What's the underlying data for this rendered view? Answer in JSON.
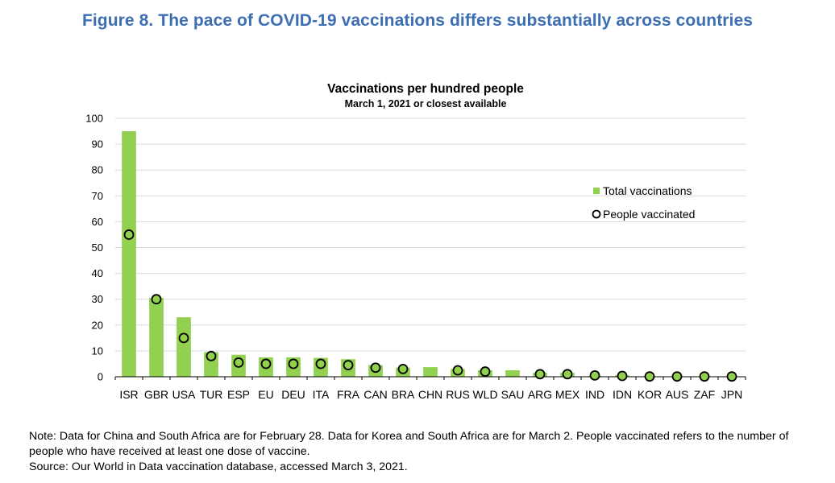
{
  "figure": {
    "title": "Figure 8. The pace of COVID-19 vaccinations differs substantially across countries"
  },
  "notes": {
    "note": "Note: Data for China and South Africa are for February 28. Data for Korea and South Africa are for March 2. People vaccinated refers to the number of people who have received at least one dose of vaccine.",
    "source": "Source: Our World in Data vaccination database, accessed March 3, 2021."
  },
  "colors": {
    "bar": "#92d050",
    "marker_fill": "#92d050",
    "marker_stroke": "#000000",
    "title": "#3c6eb4",
    "grid": "#d9d9d9"
  },
  "chart_data": {
    "type": "bar",
    "title": "Vaccinations per hundred people",
    "subtitle": "March 1, 2021 or closest available",
    "xlabel": "",
    "ylabel": "",
    "ylim": [
      0,
      100
    ],
    "yticks": [
      0,
      10,
      20,
      30,
      40,
      50,
      60,
      70,
      80,
      90,
      100
    ],
    "grid": true,
    "legend_position": "top-right",
    "categories": [
      "ISR",
      "GBR",
      "USA",
      "TUR",
      "ESP",
      "EU",
      "DEU",
      "ITA",
      "FRA",
      "CAN",
      "BRA",
      "CHN",
      "RUS",
      "WLD",
      "SAU",
      "ARG",
      "MEX",
      "IND",
      "IDN",
      "KOR",
      "AUS",
      "ZAF",
      "JPN"
    ],
    "series": [
      {
        "name": "Total vaccinations",
        "kind": "bar",
        "values": [
          95,
          30.5,
          23,
          9.5,
          8.5,
          7.5,
          7.5,
          7.3,
          6.8,
          4.5,
          3.5,
          3.7,
          3,
          2.5,
          2.5,
          1.5,
          1.5,
          0.3,
          0.6,
          0.1,
          0.1,
          0.1,
          0.1
        ]
      },
      {
        "name": "People vaccinated",
        "kind": "marker",
        "values": [
          55,
          30,
          15,
          8,
          5.5,
          5,
          5,
          5,
          4.5,
          3.5,
          3,
          null,
          2.5,
          2,
          null,
          1,
          1,
          0.5,
          0.3,
          0.1,
          0.1,
          0.1,
          0.1
        ]
      }
    ]
  }
}
